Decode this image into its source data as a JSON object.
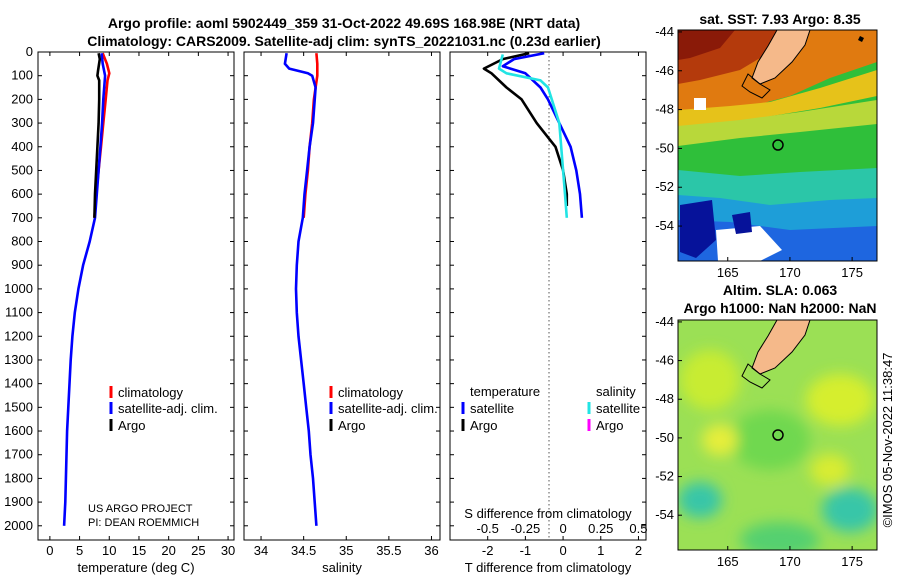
{
  "header": {
    "title_line1": "Argo profile: aoml 5902449_359 31-Oct-2022 49.69S 168.98E (NRT data)",
    "title_line2": "Climatology: CARS2009. Satellite-adj clim: synTS_20221031.nc (0.23d earlier)"
  },
  "credit": {
    "line1": "US ARGO PROJECT",
    "line2": "PI: DEAN ROEMMICH"
  },
  "vertical_stamp": "©IMOS 05-Nov-2022 11:38:47",
  "colors": {
    "climatology": "#ff0000",
    "satellite": "#0000ff",
    "argo": "#000000",
    "argo_salinity": "#ff00ff",
    "sat_salinity": "#22e4e4",
    "land": "#f5b98a"
  },
  "legend": {
    "climatology": "climatology",
    "satellite_adj": "satellite-adj. clim.",
    "argo": "Argo",
    "temperature_head": "temperature",
    "salinity_head": "salinity",
    "satellite": "satellite"
  },
  "chart_data": [
    {
      "type": "line",
      "id": "temperature",
      "xlabel": "temperature (deg C)",
      "ylabel": "",
      "xlim": [
        -2,
        31
      ],
      "ylim": [
        2060,
        0
      ],
      "xticks": [
        0,
        5,
        10,
        15,
        20,
        25,
        30
      ],
      "yticks": [
        0,
        100,
        200,
        300,
        400,
        500,
        600,
        700,
        800,
        900,
        1000,
        1100,
        1200,
        1300,
        1400,
        1500,
        1600,
        1700,
        1800,
        1900,
        2000
      ],
      "series": [
        {
          "name": "climatology",
          "points": [
            [
              8.9,
              5
            ],
            [
              9.6,
              50
            ],
            [
              10.0,
              90
            ],
            [
              9.7,
              120
            ],
            [
              9.4,
              200
            ],
            [
              9.0,
              300
            ],
            [
              8.6,
              400
            ],
            [
              8.2,
              500
            ],
            [
              7.8,
              600
            ],
            [
              7.5,
              700
            ]
          ]
        },
        {
          "name": "satellite-adj. clim.",
          "points": [
            [
              8.7,
              5
            ],
            [
              8.9,
              50
            ],
            [
              9.3,
              100
            ],
            [
              9.0,
              200
            ],
            [
              8.8,
              300
            ],
            [
              8.5,
              400
            ],
            [
              8.2,
              500
            ],
            [
              7.9,
              600
            ],
            [
              7.6,
              700
            ],
            [
              6.7,
              800
            ],
            [
              5.6,
              900
            ],
            [
              4.8,
              1000
            ],
            [
              4.2,
              1100
            ],
            [
              3.8,
              1200
            ],
            [
              3.5,
              1300
            ],
            [
              3.3,
              1400
            ],
            [
              3.1,
              1500
            ],
            [
              2.9,
              1600
            ],
            [
              2.8,
              1700
            ],
            [
              2.7,
              1800
            ],
            [
              2.6,
              1900
            ],
            [
              2.4,
              2000
            ]
          ]
        },
        {
          "name": "Argo",
          "points": [
            [
              8.2,
              5
            ],
            [
              8.4,
              30
            ],
            [
              8.1,
              80
            ],
            [
              8.0,
              100
            ],
            [
              8.3,
              120
            ],
            [
              8.3,
              200
            ],
            [
              8.2,
              300
            ],
            [
              8.0,
              400
            ],
            [
              7.8,
              500
            ],
            [
              7.6,
              600
            ],
            [
              7.5,
              700
            ]
          ]
        }
      ]
    },
    {
      "type": "line",
      "id": "salinity",
      "xlabel": "salinity",
      "ylabel": "",
      "xlim": [
        33.8,
        36.1
      ],
      "ylim": [
        2060,
        0
      ],
      "xticks": [
        34,
        34.5,
        35,
        35.5,
        36
      ],
      "series": [
        {
          "name": "climatology",
          "points": [
            [
              34.65,
              5
            ],
            [
              34.66,
              50
            ],
            [
              34.66,
              100
            ],
            [
              34.64,
              150
            ],
            [
              34.62,
              200
            ],
            [
              34.6,
              300
            ],
            [
              34.57,
              400
            ],
            [
              34.55,
              500
            ],
            [
              34.52,
              600
            ],
            [
              34.5,
              700
            ]
          ]
        },
        {
          "name": "satellite-adj. clim.",
          "points": [
            [
              34.3,
              5
            ],
            [
              34.28,
              50
            ],
            [
              34.33,
              70
            ],
            [
              34.55,
              90
            ],
            [
              34.6,
              100
            ],
            [
              34.64,
              150
            ],
            [
              34.61,
              300
            ],
            [
              34.57,
              400
            ],
            [
              34.54,
              500
            ],
            [
              34.51,
              600
            ],
            [
              34.49,
              700
            ],
            [
              34.44,
              800
            ],
            [
              34.42,
              900
            ],
            [
              34.41,
              1000
            ],
            [
              34.42,
              1100
            ],
            [
              34.44,
              1200
            ],
            [
              34.47,
              1300
            ],
            [
              34.5,
              1400
            ],
            [
              34.53,
              1500
            ],
            [
              34.56,
              1600
            ],
            [
              34.58,
              1700
            ],
            [
              34.61,
              1800
            ],
            [
              34.63,
              1900
            ],
            [
              34.65,
              2000
            ]
          ]
        }
      ]
    },
    {
      "type": "line",
      "id": "difference",
      "xlabel": "T difference from climatology",
      "xlabel_top": "S difference from climatology",
      "xlim": [
        -3.0,
        2.2
      ],
      "ylim": [
        2060,
        0
      ],
      "xticks": [
        -2,
        -1,
        0,
        1,
        2
      ],
      "s_xticks": [
        "-0.5",
        "-0.25",
        "0",
        "0.25",
        "0.5"
      ],
      "series": [
        {
          "name": "Argo temperature",
          "points": [
            [
              -0.9,
              5
            ],
            [
              -1.6,
              30
            ],
            [
              -2.1,
              70
            ],
            [
              -1.9,
              90
            ],
            [
              -1.5,
              150
            ],
            [
              -1.1,
              200
            ],
            [
              -0.7,
              300
            ],
            [
              -0.2,
              400
            ],
            [
              0.0,
              500
            ],
            [
              0.1,
              600
            ],
            [
              0.1,
              650
            ]
          ]
        },
        {
          "name": "satellite temperature",
          "points": [
            [
              -0.5,
              5
            ],
            [
              -1.3,
              30
            ],
            [
              -1.6,
              60
            ],
            [
              -1.0,
              90
            ],
            [
              -0.6,
              150
            ],
            [
              -0.4,
              200
            ],
            [
              -0.1,
              300
            ],
            [
              0.2,
              400
            ],
            [
              0.35,
              500
            ],
            [
              0.45,
              600
            ],
            [
              0.5,
              700
            ]
          ]
        },
        {
          "name": "satellite salinity",
          "points": [
            [
              -1.6,
              10
            ],
            [
              -1.7,
              70
            ],
            [
              -1.5,
              90
            ],
            [
              -0.6,
              120
            ],
            [
              -0.4,
              150
            ],
            [
              -0.2,
              250
            ],
            [
              -0.1,
              300
            ],
            [
              -0.05,
              400
            ],
            [
              0.0,
              500
            ],
            [
              0.05,
              600
            ],
            [
              0.1,
              700
            ]
          ]
        }
      ]
    },
    {
      "type": "heatmap",
      "id": "sst_map",
      "title": "sat. SST: 7.93 Argo: 8.35",
      "xticks": [
        165,
        170,
        175
      ],
      "yticks": [
        -44,
        -46,
        -48,
        -50,
        -52,
        -54
      ],
      "xlim": [
        161,
        177
      ],
      "ylim": [
        -55.8,
        -43.9
      ],
      "float_position": [
        168.98,
        -49.69
      ]
    },
    {
      "type": "heatmap",
      "id": "sla_map",
      "title_line1": "Altim. SLA: 0.063",
      "title_line2": "Argo h1000: NaN h2000: NaN",
      "xticks": [
        165,
        170,
        175
      ],
      "yticks": [
        -44,
        -46,
        -48,
        -50,
        -52,
        -54
      ],
      "xlim": [
        161,
        177
      ],
      "ylim": [
        -55.8,
        -43.9
      ],
      "float_position": [
        168.98,
        -49.69
      ]
    }
  ]
}
